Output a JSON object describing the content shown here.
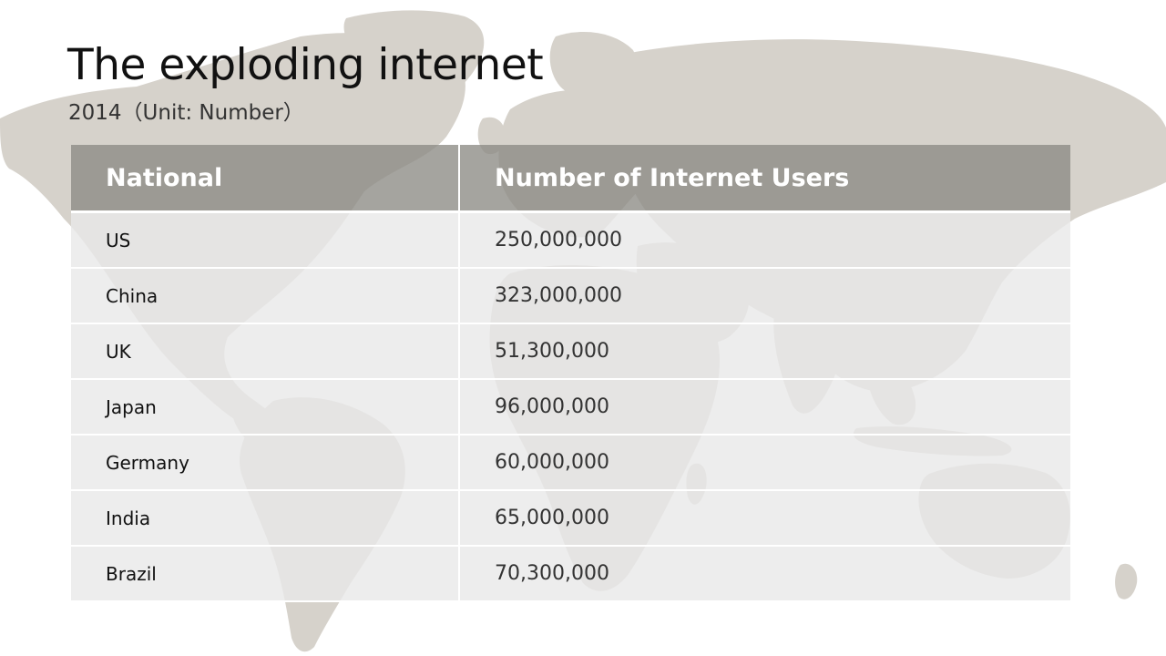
{
  "slide": {
    "title": "The exploding internet",
    "subtitle": "2014（Unit: Number）"
  },
  "table": {
    "headers": [
      "National",
      "Number of Internet Users"
    ],
    "rows": [
      {
        "country": "US",
        "users": "250,000,000"
      },
      {
        "country": "China",
        "users": "323,000,000"
      },
      {
        "country": "UK",
        "users": "51,300,000"
      },
      {
        "country": "Japan",
        "users": "96,000,000"
      },
      {
        "country": "Germany",
        "users": "60,000,000"
      },
      {
        "country": "India",
        "users": "65,000,000"
      },
      {
        "country": "Brazil",
        "users": "70,300,000"
      }
    ]
  },
  "colors": {
    "map": "#d6d2cb",
    "header_bg": "#8c8a84",
    "row_bg": "#e8e8e8",
    "title": "#111111"
  },
  "background_image": "world-map"
}
